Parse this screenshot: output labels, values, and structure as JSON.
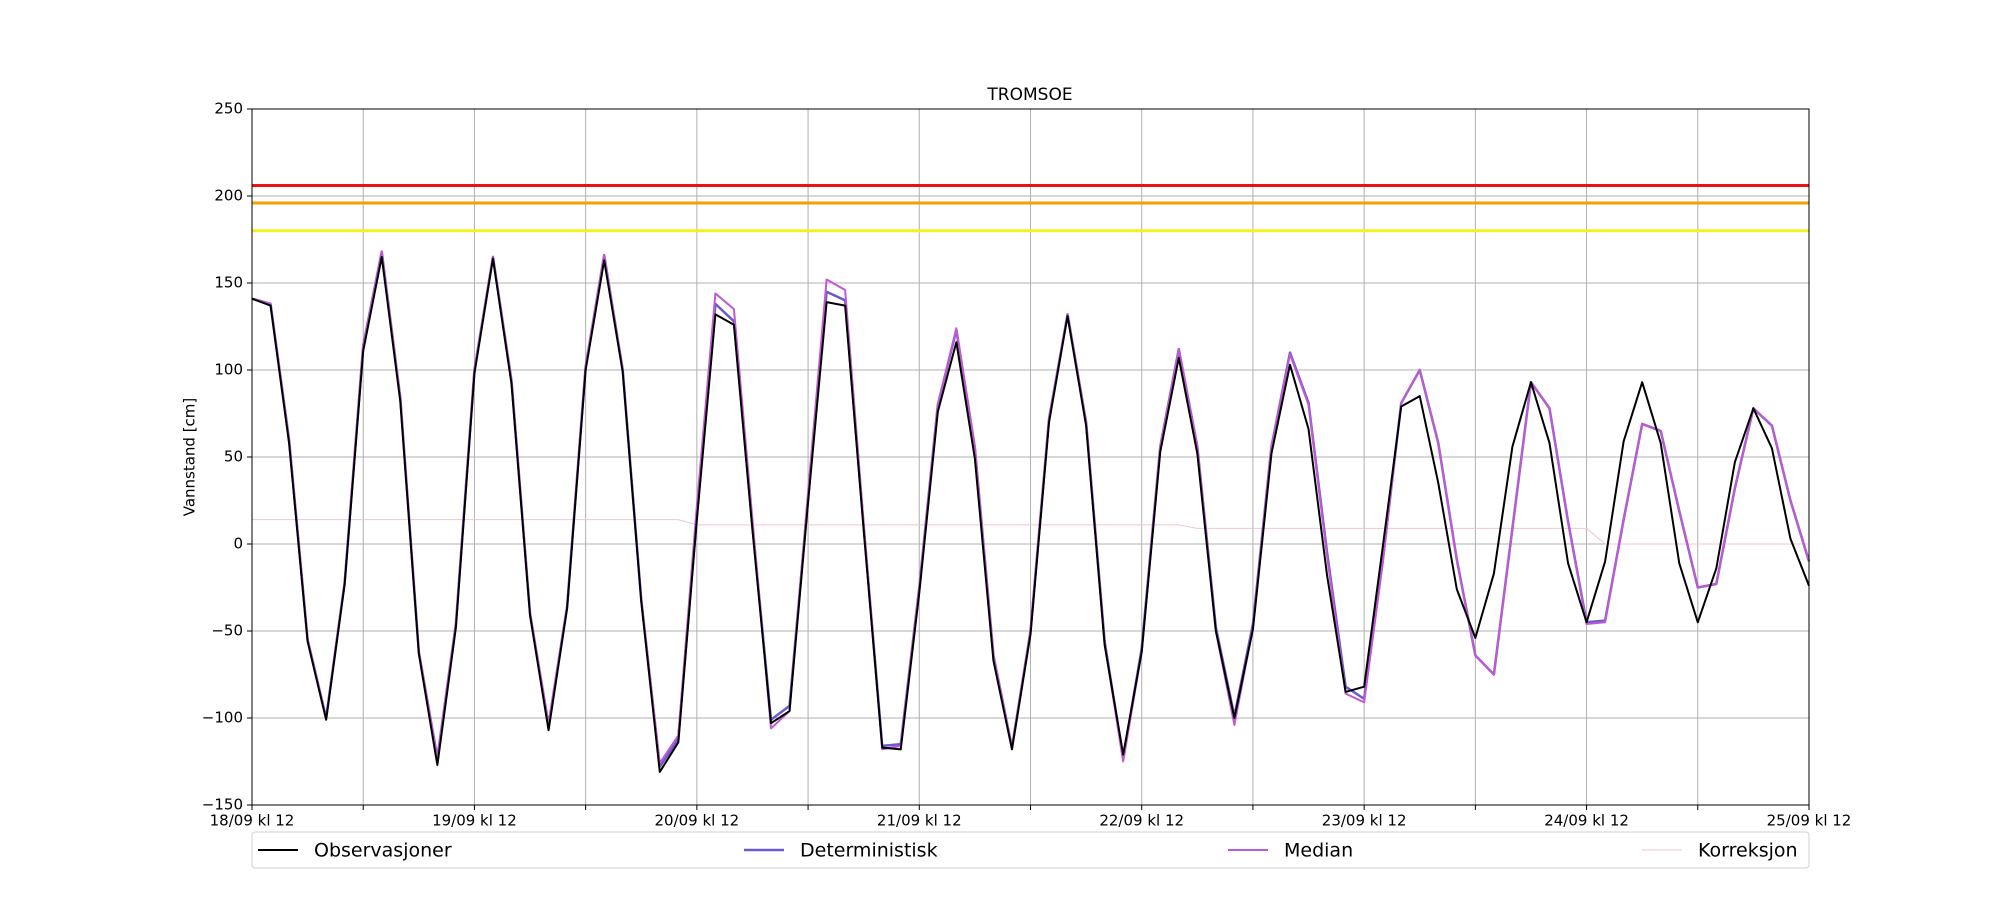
{
  "chart_data": {
    "type": "line",
    "title": "TROMSOE",
    "y_label": "Vannstand [cm]",
    "x": [
      0,
      2,
      4,
      6,
      8,
      10,
      12,
      14,
      16,
      18,
      20,
      22,
      24,
      26,
      28,
      30,
      32,
      34,
      36,
      38,
      40,
      42,
      44,
      46,
      48,
      50,
      52,
      54,
      56,
      58,
      60,
      62,
      64,
      66,
      68,
      70,
      72,
      74,
      76,
      78,
      80,
      82,
      84,
      86,
      88,
      90,
      92,
      94,
      96,
      98,
      100,
      102,
      104,
      106,
      108,
      110,
      112,
      114,
      116,
      118,
      120,
      122,
      124,
      126,
      128,
      130,
      132,
      134,
      136,
      138,
      140,
      142,
      144,
      146,
      148,
      150,
      152,
      154,
      156,
      158,
      160,
      162,
      164,
      166,
      168
    ],
    "series": [
      {
        "name": "Observasjoner",
        "color": "#000000",
        "width": 2,
        "values": [
          141,
          137,
          58,
          -56,
          -101,
          -23,
          111,
          165,
          82,
          -63,
          -127,
          -48,
          98,
          164,
          92,
          -41,
          -107,
          -37,
          100,
          163,
          99,
          -33,
          -131,
          -114,
          14,
          132,
          126,
          8,
          -103,
          -96,
          24,
          139,
          137,
          8,
          -117,
          -118,
          -28,
          76,
          116,
          49,
          -67,
          -118,
          -52,
          70,
          131,
          68,
          -58,
          -121,
          -62,
          53,
          107,
          52,
          -50,
          -100,
          -49,
          52,
          103,
          66,
          -18,
          -85,
          -82,
          -2,
          79,
          85,
          35,
          -26,
          -54,
          -17,
          56,
          93,
          58,
          -11,
          -45,
          -10,
          59,
          93,
          58,
          -11,
          -45,
          -14,
          47,
          78,
          55,
          3,
          -24
        ]
      },
      {
        "name": "Deterministisk",
        "color": "#6a5acd",
        "width": 2.5,
        "values": [
          141,
          138,
          60,
          -55,
          -100,
          -22,
          114,
          168,
          84,
          -62,
          -123,
          -46,
          100,
          165,
          94,
          -40,
          -104,
          -36,
          102,
          166,
          100,
          -32,
          -128,
          -112,
          16,
          138,
          128,
          10,
          -101,
          -93,
          26,
          145,
          140,
          10,
          -116,
          -115,
          -25,
          80,
          123,
          55,
          -64,
          -117,
          -50,
          72,
          132,
          70,
          -56,
          -123,
          -60,
          56,
          112,
          56,
          -48,
          -99,
          -46,
          56,
          110,
          81,
          -5,
          -82,
          -89,
          -10,
          81,
          100,
          58,
          -9,
          -64,
          -75,
          9,
          93,
          78,
          13,
          -45,
          -44,
          14,
          69,
          65,
          19,
          -25,
          -23,
          32,
          78,
          68,
          25,
          -10
        ]
      },
      {
        "name": "Median",
        "color": "#c05ad0",
        "width": 2,
        "values": [
          141,
          138,
          60,
          -55,
          -100,
          -22,
          114,
          168,
          84,
          -62,
          -123,
          -46,
          100,
          165,
          94,
          -40,
          -104,
          -36,
          102,
          166,
          100,
          -32,
          -126,
          -110,
          22,
          144,
          135,
          14,
          -106,
          -96,
          30,
          152,
          146,
          12,
          -118,
          -116,
          -25,
          80,
          124,
          56,
          -64,
          -117,
          -50,
          72,
          132,
          70,
          -57,
          -125,
          -62,
          56,
          112,
          56,
          -50,
          -104,
          -48,
          56,
          109,
          80,
          -7,
          -86,
          -91,
          -11,
          81,
          100,
          58,
          -9,
          -64,
          -75,
          9,
          93,
          78,
          13,
          -46,
          -45,
          14,
          69,
          65,
          19,
          -25,
          -23,
          32,
          78,
          68,
          25,
          -10
        ]
      },
      {
        "name": "Korreksjon",
        "color": "#f2c4d2",
        "width": 1,
        "values": [
          14,
          14,
          14,
          14,
          14,
          14,
          14,
          14,
          14,
          14,
          14,
          14,
          14,
          14,
          14,
          14,
          14,
          14,
          14,
          14,
          14,
          14,
          14,
          14,
          11,
          11,
          11,
          11,
          11,
          11,
          11,
          11,
          11,
          11,
          11,
          11,
          11,
          11,
          11,
          11,
          11,
          11,
          11,
          11,
          11,
          11,
          11,
          11,
          11,
          11,
          11,
          9,
          9,
          9,
          9,
          9,
          9,
          9,
          9,
          9,
          9,
          9,
          9,
          9,
          9,
          9,
          9,
          9,
          9,
          9,
          9,
          9,
          9,
          0,
          0,
          0,
          0,
          0,
          0,
          0,
          0,
          0,
          0,
          0,
          0
        ]
      }
    ],
    "reference_lines": [
      {
        "value": 206,
        "color": "#ee1111"
      },
      {
        "value": 196,
        "color": "#f5a000"
      },
      {
        "value": 180,
        "color": "#f4f023"
      }
    ],
    "xlim": [
      0,
      168
    ],
    "xticks": [
      {
        "value": 0,
        "label": "18/09 kl 12"
      },
      {
        "value": 24,
        "label": "19/09 kl 12"
      },
      {
        "value": 48,
        "label": "20/09 kl 12"
      },
      {
        "value": 72,
        "label": "21/09 kl 12"
      },
      {
        "value": 96,
        "label": "22/09 kl 12"
      },
      {
        "value": 120,
        "label": "23/09 kl 12"
      },
      {
        "value": 144,
        "label": "24/09 kl 12"
      },
      {
        "value": 168,
        "label": "25/09 kl 12"
      }
    ],
    "xminorticks": [
      12,
      36,
      60,
      84,
      108,
      132,
      156
    ],
    "ylim": [
      -150,
      250
    ],
    "yticks": [
      {
        "value": -150,
        "label": "−150"
      },
      {
        "value": -100,
        "label": "−100"
      },
      {
        "value": -50,
        "label": "−50"
      },
      0,
      50,
      100,
      150,
      200,
      250
    ],
    "grid": true,
    "legend": "bottom"
  }
}
